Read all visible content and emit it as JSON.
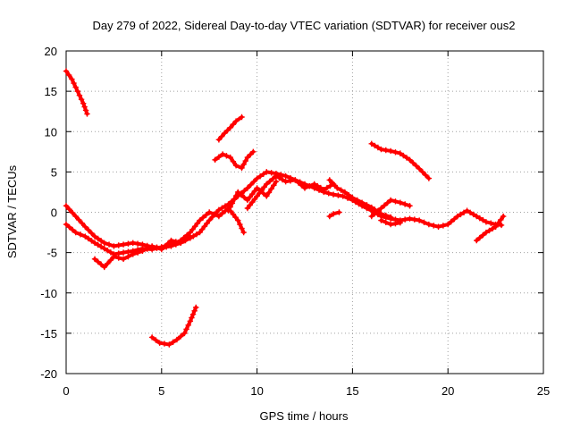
{
  "chart_data": {
    "type": "scatter",
    "title": "Day 279 of 2022, Sidereal Day-to-day VTEC variation (SDTVAR) for receiver ous2",
    "xlabel": "GPS time / hours",
    "ylabel": "SDTVAR / TECUs",
    "xlim": [
      0,
      25
    ],
    "ylim": [
      -20,
      20
    ],
    "xticks": [
      0,
      5,
      10,
      15,
      20,
      25
    ],
    "yticks": [
      -20,
      -15,
      -10,
      -5,
      0,
      5,
      10,
      15,
      20
    ],
    "grid": true,
    "marker": "+",
    "colors": {
      "series": "#ff0000",
      "grid": "#a0a0a0",
      "axes": "#000000"
    },
    "series": [
      {
        "name": "s1",
        "x": [
          0.0,
          0.3,
          0.6,
          0.9,
          1.1
        ],
        "y": [
          17.5,
          16.5,
          15.0,
          13.5,
          12.2
        ]
      },
      {
        "name": "s2",
        "x": [
          8.0,
          8.3,
          8.6,
          8.9,
          9.2
        ],
        "y": [
          9.0,
          9.8,
          10.5,
          11.3,
          11.8
        ]
      },
      {
        "name": "s3",
        "x": [
          7.8,
          8.2,
          8.6,
          8.9,
          9.2,
          9.5,
          9.8
        ],
        "y": [
          6.5,
          7.2,
          6.8,
          5.8,
          5.5,
          6.8,
          7.5
        ]
      },
      {
        "name": "s4",
        "x": [
          16.0,
          16.5,
          17.0,
          17.5,
          18.0,
          18.5,
          19.0
        ],
        "y": [
          8.5,
          7.8,
          7.6,
          7.3,
          6.5,
          5.4,
          4.2
        ]
      },
      {
        "name": "s5",
        "x": [
          4.5,
          4.9,
          5.4,
          5.8,
          6.2,
          6.5,
          6.8
        ],
        "y": [
          -15.5,
          -16.2,
          -16.4,
          -15.8,
          -15.0,
          -13.5,
          -11.8
        ]
      },
      {
        "name": "s6",
        "x": [
          0.0,
          0.5,
          1.0,
          1.5,
          2.0,
          2.5,
          3.0,
          3.5,
          4.0,
          4.5,
          5.0,
          5.5,
          6.0,
          6.5,
          7.0,
          7.5,
          8.0,
          8.5,
          9.0,
          9.5,
          10.0,
          10.5,
          11.0,
          11.5,
          12.0,
          12.5,
          13.0,
          13.5,
          14.0,
          14.5,
          15.0,
          15.5,
          16.0,
          16.5,
          17.0,
          17.5,
          18.0,
          18.5,
          19.0,
          19.5,
          20.0,
          20.5,
          21.0,
          21.5,
          22.0,
          22.5,
          22.8
        ],
        "y": [
          0.8,
          -0.5,
          -1.8,
          -3.0,
          -3.8,
          -4.2,
          -4.0,
          -3.8,
          -4.0,
          -4.3,
          -4.4,
          -4.2,
          -3.8,
          -3.2,
          -2.5,
          -1.0,
          0.3,
          1.0,
          2.0,
          3.0,
          4.2,
          5.0,
          4.8,
          4.5,
          4.0,
          3.5,
          3.0,
          2.5,
          2.2,
          2.0,
          1.5,
          0.8,
          0.2,
          -0.5,
          -0.8,
          -1.0,
          -0.8,
          -1.0,
          -1.5,
          -1.8,
          -1.5,
          -0.5,
          0.2,
          -0.5,
          -1.2,
          -1.5,
          -1.6
        ]
      },
      {
        "name": "s7",
        "x": [
          0.0,
          0.5,
          1.0,
          1.5,
          2.0,
          2.5,
          3.0,
          3.5,
          4.0,
          4.5,
          5.0,
          5.5,
          6.0,
          6.5,
          7.0,
          7.5,
          8.0,
          8.5,
          9.0,
          9.3
        ],
        "y": [
          -1.5,
          -2.5,
          -3.0,
          -3.8,
          -4.5,
          -5.2,
          -5.0,
          -4.8,
          -4.5,
          -4.6,
          -4.3,
          -4.0,
          -3.5,
          -2.5,
          -1.0,
          0.0,
          -0.5,
          0.5,
          -1.0,
          -2.5
        ]
      },
      {
        "name": "s8",
        "x": [
          1.5,
          2.0,
          2.5,
          3.0,
          3.5,
          4.0,
          4.5,
          5.0,
          5.5,
          6.0,
          6.5
        ],
        "y": [
          -5.8,
          -6.8,
          -5.5,
          -5.8,
          -5.2,
          -4.8,
          -4.2,
          -4.6,
          -3.5,
          -3.8,
          -3.0
        ]
      },
      {
        "name": "s9",
        "x": [
          9.5,
          10.0,
          10.5,
          11.0,
          11.5,
          12.0,
          12.5,
          13.0,
          13.5,
          14.0
        ],
        "y": [
          0.5,
          2.0,
          3.5,
          4.5,
          3.8,
          4.0,
          3.0,
          3.5,
          2.8,
          3.5
        ]
      },
      {
        "name": "s10",
        "x": [
          8.5,
          9.0,
          9.5,
          10.0,
          10.5,
          11.0
        ],
        "y": [
          0.2,
          2.5,
          1.5,
          3.0,
          2.0,
          3.8
        ]
      },
      {
        "name": "s11",
        "x": [
          13.8,
          14.2,
          14.6,
          15.0,
          15.5,
          16.0,
          16.5,
          17.0
        ],
        "y": [
          4.0,
          3.0,
          2.5,
          1.8,
          1.2,
          0.6,
          -0.2,
          -0.6
        ]
      },
      {
        "name": "s12",
        "x": [
          13.8,
          14.0,
          14.3
        ],
        "y": [
          -0.5,
          -0.2,
          0.0
        ]
      },
      {
        "name": "s13",
        "x": [
          16.0,
          16.5,
          17.0,
          17.5,
          18.0
        ],
        "y": [
          -0.5,
          0.5,
          1.5,
          1.2,
          0.8
        ]
      },
      {
        "name": "s14",
        "x": [
          16.5,
          17.0,
          17.5
        ],
        "y": [
          -1.0,
          -1.5,
          -1.3
        ]
      },
      {
        "name": "s15",
        "x": [
          21.5,
          22.0,
          22.5,
          22.9
        ],
        "y": [
          -3.5,
          -2.5,
          -1.8,
          -0.5
        ]
      }
    ]
  }
}
